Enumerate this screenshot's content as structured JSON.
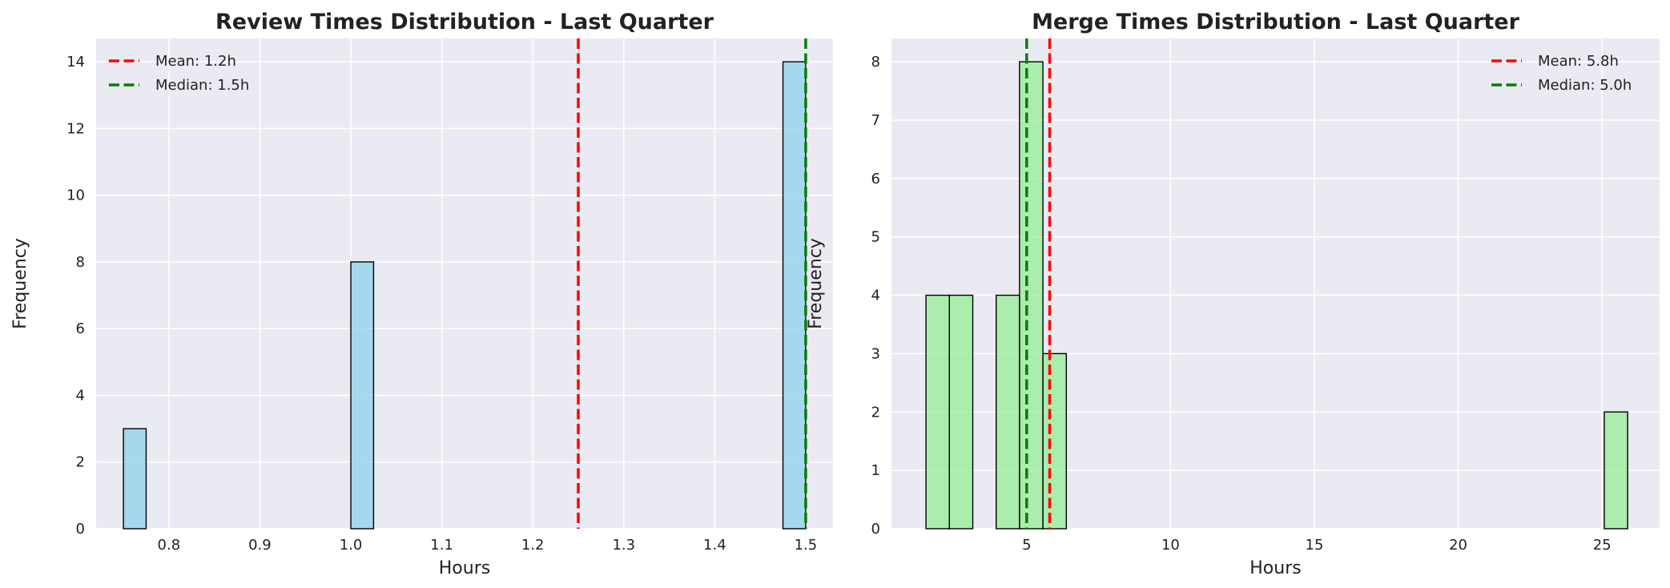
{
  "chart_data": [
    {
      "type": "bar",
      "title": "Review Times Distribution - Last Quarter",
      "xlabel": "Hours",
      "ylabel": "Frequency",
      "xlim": [
        0.72,
        1.53
      ],
      "ylim": [
        0,
        14.7
      ],
      "xticks": [
        "0.8",
        "0.9",
        "1.0",
        "1.1",
        "1.2",
        "1.3",
        "1.4",
        "1.5"
      ],
      "yticks": [
        "0",
        "2",
        "4",
        "6",
        "8",
        "10",
        "12",
        "14"
      ],
      "bar_color": "#87ceeb",
      "bin_width": 0.025,
      "bins": [
        {
          "x": 0.75,
          "count": 3
        },
        {
          "x": 1.0,
          "count": 8
        },
        {
          "x": 1.475,
          "count": 14
        }
      ],
      "lines": [
        {
          "name": "Mean: 1.2h",
          "x": 1.25,
          "color": "#ff0000"
        },
        {
          "name": "Median: 1.5h",
          "x": 1.5,
          "color": "#008000"
        }
      ],
      "legend": "top-left",
      "grid": true
    },
    {
      "type": "bar",
      "title": "Merge Times Distribution - Last Quarter",
      "xlabel": "Hours",
      "ylabel": "Frequency",
      "xlim": [
        0.3,
        27.0
      ],
      "ylim": [
        0,
        8.4
      ],
      "xticks": [
        "5",
        "10",
        "15",
        "20",
        "25"
      ],
      "yticks": [
        "0",
        "1",
        "2",
        "3",
        "4",
        "5",
        "6",
        "7",
        "8"
      ],
      "bar_color": "#90ee90",
      "bin_width": 0.813,
      "bins": [
        {
          "x": 1.5,
          "count": 4
        },
        {
          "x": 2.313,
          "count": 4
        },
        {
          "x": 3.939,
          "count": 4
        },
        {
          "x": 4.752,
          "count": 8
        },
        {
          "x": 5.565,
          "count": 3
        },
        {
          "x": 25.077,
          "count": 2
        }
      ],
      "lines": [
        {
          "name": "Mean: 5.8h",
          "x": 5.8,
          "color": "#ff0000"
        },
        {
          "name": "Median: 5.0h",
          "x": 5.0,
          "color": "#008000"
        }
      ],
      "legend": "top-right",
      "grid": true
    }
  ]
}
